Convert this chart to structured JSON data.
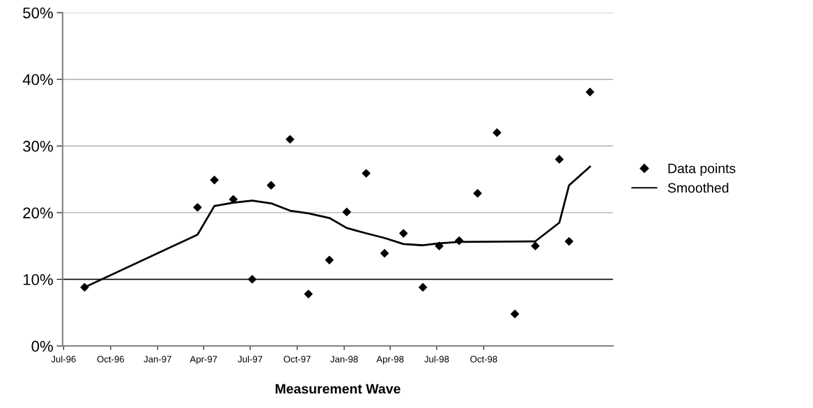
{
  "chart_data": {
    "type": "scatter",
    "xlabel": "Measurement Wave",
    "xlim": [
      "1996-07-01",
      "1999-06-13"
    ],
    "xticks": [
      {
        "value": "1996-07-03",
        "label": "Jul-96"
      },
      {
        "value": "1996-10-03",
        "label": "Oct-96"
      },
      {
        "value": "1997-01-03",
        "label": "Jan-97"
      },
      {
        "value": "1997-04-03",
        "label": "Apr-97"
      },
      {
        "value": "1997-07-03",
        "label": "Jul-97"
      },
      {
        "value": "1997-10-03",
        "label": "Oct-97"
      },
      {
        "value": "1998-01-03",
        "label": "Jan-98"
      },
      {
        "value": "1998-04-03",
        "label": "Apr-98"
      },
      {
        "value": "1998-07-03",
        "label": "Jul-98"
      },
      {
        "value": "1998-10-03",
        "label": "Oct-98"
      }
    ],
    "ylim": [
      0,
      50
    ],
    "yticks": [
      {
        "value": 0,
        "label": "0%"
      },
      {
        "value": 10,
        "label": "10%"
      },
      {
        "value": 20,
        "label": "20%"
      },
      {
        "value": 30,
        "label": "30%"
      },
      {
        "value": 40,
        "label": "40%"
      },
      {
        "value": 50,
        "label": "50%"
      }
    ],
    "grid": "y",
    "legend": "right",
    "ref_lines": [
      {
        "axis": "y",
        "value": 10,
        "label": null,
        "color": "#000000"
      }
    ],
    "series": [
      {
        "name": "Data points",
        "marker": "diamond",
        "color": "#000000",
        "x": [
          "1996-08-13",
          "1997-03-22",
          "1997-04-24",
          "1997-05-31",
          "1997-07-07",
          "1997-08-13",
          "1997-09-19",
          "1997-10-25",
          "1997-12-05",
          "1998-01-08",
          "1998-02-15",
          "1998-03-23",
          "1998-04-29",
          "1998-06-06",
          "1998-07-08",
          "1998-08-16",
          "1998-09-21",
          "1998-10-29",
          "1998-12-03",
          "1999-01-12",
          "1999-02-28",
          "1999-03-19",
          "1999-04-29"
        ],
        "values": [
          8.8,
          20.8,
          24.9,
          22.0,
          10.0,
          24.1,
          31.0,
          7.8,
          12.9,
          20.1,
          25.9,
          13.9,
          16.9,
          8.8,
          15.0,
          15.8,
          22.9,
          32.0,
          4.8,
          15.0,
          28.0,
          15.7,
          38.1
        ]
      },
      {
        "name": "Smoothed",
        "type": "line",
        "marker": "none",
        "line_style": "solid",
        "color": "#000000",
        "x": [
          "1996-08-13",
          "1997-03-22",
          "1997-04-24",
          "1997-05-31",
          "1997-07-07",
          "1997-08-13",
          "1997-09-19",
          "1997-10-25",
          "1997-12-05",
          "1998-01-08",
          "1998-02-15",
          "1998-03-23",
          "1998-04-29",
          "1998-06-06",
          "1998-07-08",
          "1998-08-16",
          "1999-01-12",
          "1999-02-28",
          "1999-03-19",
          "1999-04-29"
        ],
        "values": [
          8.8,
          16.7,
          21.0,
          21.5,
          21.8,
          21.4,
          20.3,
          19.9,
          19.2,
          17.7,
          16.9,
          16.2,
          15.3,
          15.1,
          15.4,
          15.6,
          15.7,
          18.5,
          24.1,
          26.9
        ]
      }
    ]
  }
}
